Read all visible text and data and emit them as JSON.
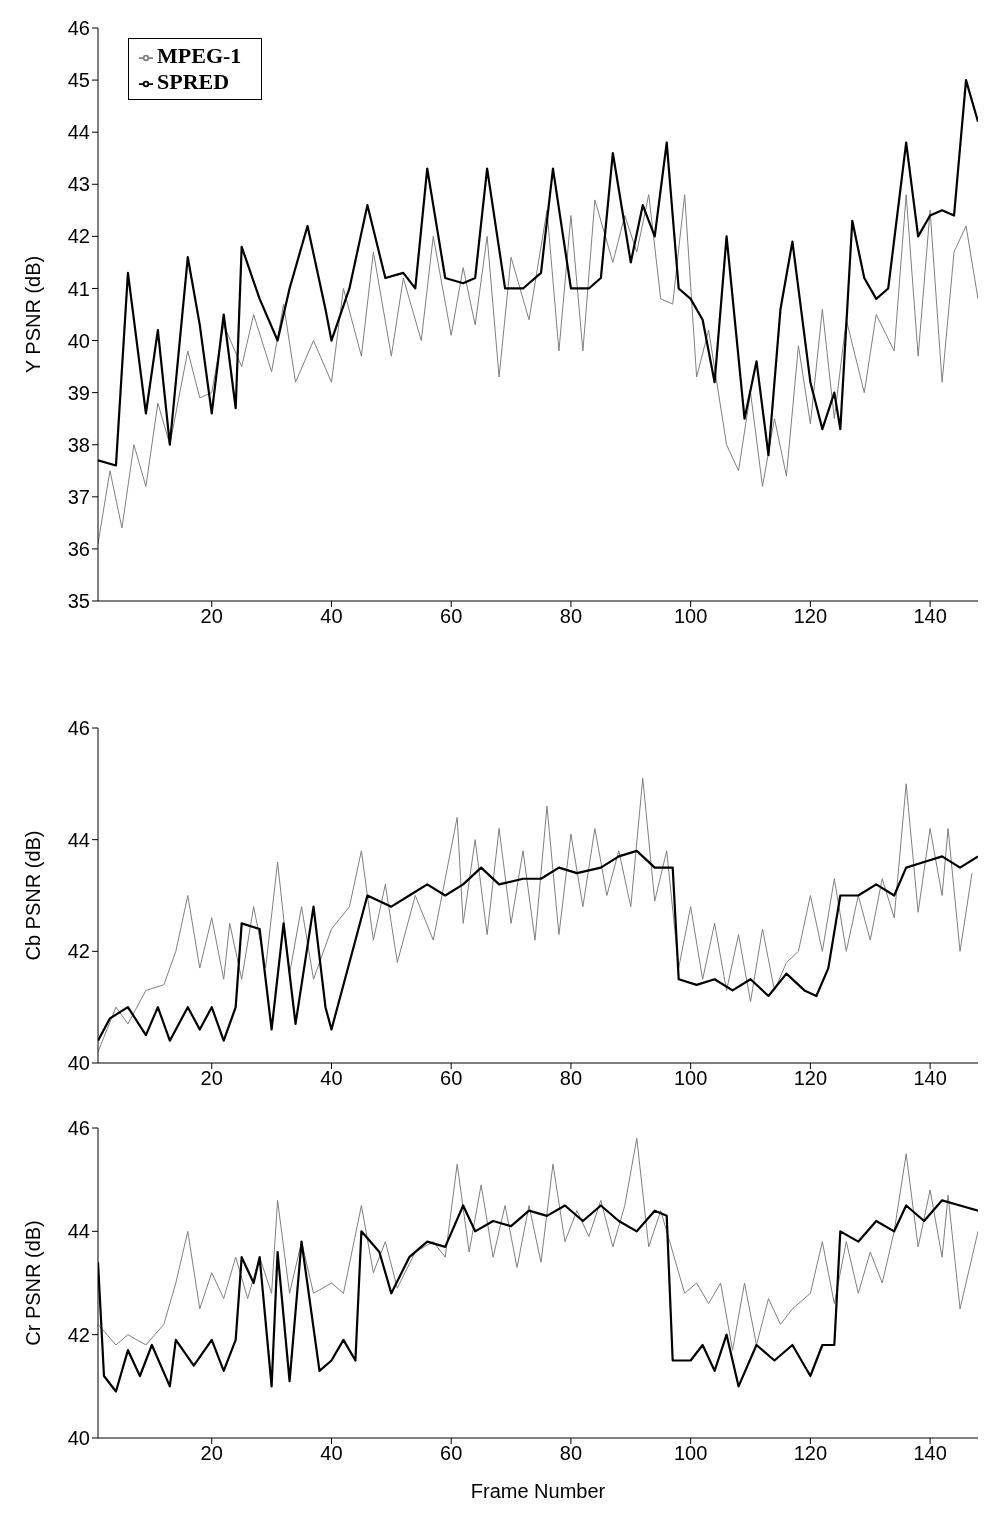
{
  "chart_data": [
    {
      "type": "line",
      "ylabel": "Y PSNR (dB)",
      "xlim": [
        1,
        148
      ],
      "xticks": [
        20,
        40,
        60,
        80,
        100,
        120,
        140
      ],
      "ylim": [
        35,
        46
      ],
      "yticks": [
        35,
        36,
        37,
        38,
        39,
        40,
        41,
        42,
        43,
        44,
        45,
        46
      ],
      "legend": "top left",
      "grid": false,
      "marker": "none",
      "line_style": "solid",
      "series": [
        {
          "name": "MPEG-1",
          "color": "#808080",
          "x": [
            1,
            3,
            5,
            7,
            9,
            11,
            13,
            16,
            18,
            20,
            22,
            25,
            27,
            30,
            32,
            34,
            37,
            40,
            42,
            45,
            47,
            50,
            52,
            55,
            57,
            60,
            62,
            64,
            66,
            68,
            70,
            73,
            76,
            78,
            80,
            82,
            84,
            87,
            89,
            91,
            93,
            95,
            97,
            99,
            101,
            103,
            106,
            108,
            110,
            112,
            114,
            116,
            118,
            120,
            122,
            124,
            126,
            129,
            131,
            134,
            136,
            138,
            140,
            142,
            144,
            146,
            148
          ],
          "values": [
            36.1,
            37.5,
            36.4,
            38.0,
            37.2,
            38.8,
            38.0,
            39.8,
            38.9,
            39.0,
            40.3,
            39.5,
            40.5,
            39.4,
            40.7,
            39.2,
            40.0,
            39.2,
            41.0,
            39.7,
            41.7,
            39.7,
            41.2,
            40.0,
            42.0,
            40.1,
            41.4,
            40.3,
            42.0,
            39.3,
            41.6,
            40.4,
            42.5,
            39.8,
            42.4,
            39.8,
            42.7,
            41.5,
            42.4,
            41.7,
            42.8,
            40.8,
            40.7,
            42.8,
            39.3,
            40.2,
            38.0,
            37.5,
            39.0,
            37.2,
            38.5,
            37.4,
            39.9,
            38.4,
            40.6,
            38.5,
            40.4,
            39.0,
            40.5,
            39.8,
            42.8,
            39.7,
            42.5,
            39.2,
            41.7,
            42.2,
            40.8
          ]
        },
        {
          "name": "SPRED",
          "color": "#000000",
          "x": [
            1,
            4,
            6,
            9,
            11,
            13,
            16,
            18,
            20,
            22,
            24,
            25,
            28,
            31,
            33,
            36,
            39,
            40,
            43,
            46,
            49,
            52,
            54,
            56,
            59,
            62,
            64,
            66,
            69,
            72,
            75,
            77,
            80,
            83,
            85,
            87,
            90,
            92,
            94,
            96,
            98,
            100,
            102,
            104,
            106,
            109,
            111,
            113,
            115,
            117,
            120,
            122,
            124,
            125,
            127,
            129,
            131,
            133,
            136,
            138,
            140,
            142,
            144,
            146,
            148
          ],
          "values": [
            37.7,
            37.6,
            41.3,
            38.6,
            40.2,
            38.0,
            41.6,
            40.3,
            38.6,
            40.5,
            38.7,
            41.8,
            40.8,
            40.0,
            41.0,
            42.2,
            40.6,
            40.0,
            41.0,
            42.6,
            41.2,
            41.3,
            41.0,
            43.3,
            41.2,
            41.1,
            41.2,
            43.3,
            41.0,
            41.0,
            41.3,
            43.3,
            41.0,
            41.0,
            41.2,
            43.6,
            41.5,
            42.6,
            42.0,
            43.8,
            41.0,
            40.8,
            40.4,
            39.2,
            42.0,
            38.5,
            39.6,
            37.8,
            40.6,
            41.9,
            39.2,
            38.3,
            39.0,
            38.3,
            42.3,
            41.2,
            40.8,
            41.0,
            43.8,
            42.0,
            42.4,
            42.5,
            42.4,
            45.0,
            44.2
          ]
        }
      ]
    },
    {
      "type": "line",
      "ylabel": "Cb PSNR (dB)",
      "xlim": [
        1,
        148
      ],
      "xticks": [
        20,
        40,
        60,
        80,
        100,
        120,
        140
      ],
      "ylim": [
        40,
        46
      ],
      "yticks": [
        40,
        42,
        44,
        46
      ],
      "grid": false,
      "marker": "none",
      "line_style": "solid",
      "series": [
        {
          "color": "#808080",
          "x": [
            1,
            4,
            6,
            9,
            12,
            14,
            16,
            18,
            20,
            22,
            23,
            25,
            27,
            29,
            31,
            33,
            35,
            37,
            40,
            43,
            45,
            47,
            49,
            51,
            54,
            57,
            59,
            61,
            62,
            64,
            66,
            68,
            70,
            72,
            74,
            76,
            78,
            80,
            82,
            84,
            86,
            88,
            90,
            92,
            94,
            96,
            98,
            100,
            102,
            104,
            106,
            108,
            110,
            112,
            114,
            116,
            118,
            120,
            122,
            124,
            126,
            128,
            130,
            132,
            134,
            136,
            138,
            140,
            142,
            143,
            145,
            147
          ],
          "values": [
            40.2,
            41.0,
            40.7,
            41.3,
            41.4,
            42.0,
            43.0,
            41.7,
            42.6,
            41.5,
            42.5,
            41.5,
            42.8,
            41.7,
            43.6,
            41.6,
            42.8,
            41.5,
            42.4,
            42.8,
            43.8,
            42.2,
            43.2,
            41.8,
            43.0,
            42.2,
            43.3,
            44.4,
            42.5,
            44.0,
            42.3,
            44.2,
            42.5,
            43.8,
            42.2,
            44.6,
            42.3,
            44.1,
            42.8,
            44.2,
            43.0,
            43.8,
            42.8,
            45.1,
            42.9,
            43.8,
            41.7,
            42.8,
            41.5,
            42.5,
            41.3,
            42.3,
            41.1,
            42.4,
            41.3,
            41.8,
            42.0,
            43.0,
            42.0,
            43.3,
            42.0,
            43.0,
            42.2,
            43.3,
            42.6,
            45.0,
            42.7,
            44.2,
            43.0,
            44.2,
            42.0,
            43.4
          ]
        },
        {
          "color": "#000000",
          "x": [
            1,
            3,
            6,
            9,
            11,
            13,
            16,
            18,
            20,
            22,
            24,
            25,
            28,
            30,
            32,
            34,
            37,
            39,
            40,
            44,
            46,
            50,
            53,
            56,
            59,
            62,
            65,
            68,
            72,
            75,
            78,
            81,
            85,
            88,
            91,
            94,
            97,
            98,
            101,
            104,
            107,
            110,
            113,
            116,
            119,
            121,
            123,
            125,
            128,
            131,
            134,
            136,
            139,
            142,
            145,
            148
          ],
          "values": [
            40.4,
            40.8,
            41.0,
            40.5,
            41.0,
            40.4,
            41.0,
            40.6,
            41.0,
            40.4,
            41.0,
            42.5,
            42.4,
            40.6,
            42.5,
            40.7,
            42.8,
            41.0,
            40.6,
            42.2,
            43.0,
            42.8,
            43.0,
            43.2,
            43.0,
            43.2,
            43.5,
            43.2,
            43.3,
            43.3,
            43.5,
            43.4,
            43.5,
            43.7,
            43.8,
            43.5,
            43.5,
            41.5,
            41.4,
            41.5,
            41.3,
            41.5,
            41.2,
            41.6,
            41.3,
            41.2,
            41.7,
            43.0,
            43.0,
            43.2,
            43.0,
            43.5,
            43.6,
            43.7,
            43.5,
            43.7
          ]
        }
      ]
    },
    {
      "type": "line",
      "xlabel": "Frame Number",
      "ylabel": "Cr PSNR (dB)",
      "xlim": [
        1,
        148
      ],
      "xticks": [
        20,
        40,
        60,
        80,
        100,
        120,
        140
      ],
      "ylim": [
        40,
        46
      ],
      "yticks": [
        40,
        42,
        44,
        46
      ],
      "grid": false,
      "marker": "none",
      "line_style": "solid",
      "series": [
        {
          "color": "#808080",
          "x": [
            1,
            4,
            6,
            9,
            12,
            14,
            16,
            18,
            20,
            22,
            24,
            26,
            28,
            30,
            31,
            33,
            35,
            37,
            40,
            42,
            45,
            47,
            49,
            51,
            54,
            57,
            59,
            61,
            63,
            65,
            67,
            69,
            71,
            73,
            75,
            77,
            79,
            81,
            83,
            85,
            87,
            89,
            91,
            93,
            95,
            97,
            99,
            101,
            103,
            105,
            107,
            109,
            111,
            113,
            115,
            117,
            120,
            122,
            124,
            126,
            128,
            130,
            132,
            134,
            136,
            138,
            140,
            142,
            143,
            145,
            148
          ],
          "values": [
            42.2,
            41.8,
            42.0,
            41.8,
            42.2,
            43.0,
            44.0,
            42.5,
            43.2,
            42.7,
            43.5,
            42.7,
            43.5,
            42.8,
            44.6,
            42.8,
            43.8,
            42.8,
            43.0,
            42.8,
            44.5,
            43.2,
            43.8,
            42.9,
            43.6,
            43.8,
            43.5,
            45.3,
            43.6,
            44.9,
            43.5,
            44.5,
            43.3,
            44.5,
            43.4,
            45.3,
            43.8,
            44.4,
            43.9,
            44.6,
            43.7,
            44.5,
            45.8,
            43.7,
            44.4,
            43.6,
            42.8,
            43.0,
            42.6,
            43.0,
            41.7,
            43.0,
            41.8,
            42.7,
            42.2,
            42.5,
            42.8,
            43.8,
            42.6,
            43.8,
            42.8,
            43.6,
            43.0,
            44.0,
            45.5,
            43.7,
            44.8,
            43.5,
            44.7,
            42.5,
            44.0
          ]
        },
        {
          "color": "#000000",
          "x": [
            1,
            2,
            4,
            6,
            8,
            10,
            13,
            14,
            17,
            20,
            22,
            24,
            25,
            27,
            28,
            30,
            31,
            33,
            35,
            38,
            40,
            42,
            44,
            45,
            48,
            50,
            53,
            56,
            59,
            62,
            64,
            67,
            70,
            73,
            76,
            79,
            82,
            85,
            88,
            91,
            94,
            96,
            97,
            100,
            102,
            104,
            106,
            108,
            111,
            114,
            117,
            120,
            122,
            124,
            125,
            128,
            131,
            134,
            136,
            139,
            142,
            145,
            148
          ],
          "values": [
            43.4,
            41.2,
            40.9,
            41.7,
            41.2,
            41.8,
            41.0,
            41.9,
            41.4,
            41.9,
            41.3,
            41.9,
            43.5,
            43.0,
            43.5,
            41.0,
            43.6,
            41.1,
            43.8,
            41.3,
            41.5,
            41.9,
            41.5,
            44.0,
            43.6,
            42.8,
            43.5,
            43.8,
            43.7,
            44.5,
            44.0,
            44.2,
            44.1,
            44.4,
            44.3,
            44.5,
            44.2,
            44.5,
            44.2,
            44.0,
            44.4,
            44.3,
            41.5,
            41.5,
            41.8,
            41.3,
            42.0,
            41.0,
            41.8,
            41.5,
            41.8,
            41.2,
            41.8,
            41.8,
            44.0,
            43.8,
            44.2,
            44.0,
            44.5,
            44.2,
            44.6,
            44.5,
            44.4
          ]
        }
      ]
    }
  ]
}
